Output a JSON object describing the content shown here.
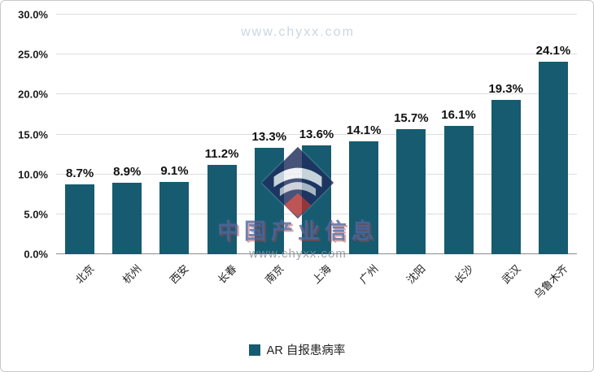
{
  "chart_data": {
    "type": "bar",
    "title": "",
    "categories": [
      "北京",
      "杭州",
      "西安",
      "长春",
      "南京",
      "上海",
      "广州",
      "沈阳",
      "长沙",
      "武汉",
      "乌鲁木齐"
    ],
    "values": [
      8.7,
      8.9,
      9.1,
      11.2,
      13.3,
      13.6,
      14.1,
      15.7,
      16.1,
      19.3,
      24.1
    ],
    "value_labels": [
      "8.7%",
      "8.9%",
      "9.1%",
      "11.2%",
      "13.3%",
      "13.6%",
      "14.1%",
      "15.7%",
      "16.1%",
      "19.3%",
      "24.1%"
    ],
    "xlabel": "",
    "ylabel": "",
    "ylim": [
      0,
      30
    ],
    "ytick_values": [
      30,
      25,
      20,
      15,
      10,
      5,
      0
    ],
    "yticks": [
      "30.0%",
      "25.0%",
      "20.0%",
      "15.0%",
      "10.0%",
      "5.0%",
      "0.0%"
    ],
    "grid": true,
    "legend_position": "bottom-center",
    "legend_label": "AR 自报患病率",
    "bar_color": "#175B70"
  },
  "watermark": {
    "top_text": "www.chyxx.com",
    "line1": "中国产业信息",
    "line2": "www.chyxx.com",
    "logo_navy": "#1e2f5e",
    "logo_red": "#b03030"
  }
}
